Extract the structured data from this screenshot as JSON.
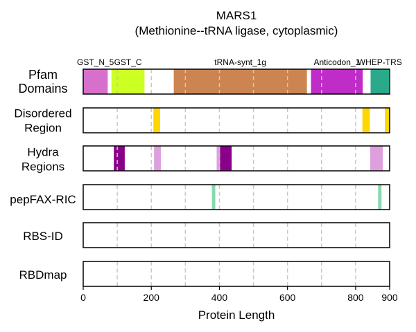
{
  "chart_data": {
    "type": "bar",
    "title": "MARS1",
    "subtitle": "(Methionine--tRNA ligase, cytoplasmic)",
    "xlabel": "Protein Length",
    "xlim": [
      0,
      900
    ],
    "xticks": [
      0,
      200,
      400,
      600,
      800,
      900
    ],
    "grid_x": [
      100,
      200,
      300,
      400,
      500,
      600,
      700,
      800
    ],
    "grid": true,
    "rows": [
      {
        "label": "Pfam Domains",
        "segments": [
          {
            "name": "GST_N_5",
            "start": 0,
            "end": 72,
            "color": "#d670cc"
          },
          {
            "name": "GST_C",
            "start": 83,
            "end": 180,
            "color": "#ccff22"
          },
          {
            "name": "tRNA-synt_1g",
            "start": 266,
            "end": 657,
            "color": "#cc8450"
          },
          {
            "name": "Anticodon_1",
            "start": 669,
            "end": 821,
            "color": "#c02cc8"
          },
          {
            "name": "WHEP-TRS",
            "start": 844,
            "end": 898,
            "color": "#2aaa8a"
          }
        ]
      },
      {
        "label": "Disordered Region",
        "segments": [
          {
            "start": 206,
            "end": 226,
            "color": "#ffd700"
          },
          {
            "start": 820,
            "end": 842,
            "color": "#ffd700"
          },
          {
            "start": 886,
            "end": 900,
            "color": "#ffd700"
          }
        ]
      },
      {
        "label": "Hydra Regions",
        "segments": [
          {
            "start": 90,
            "end": 122,
            "color": "#8b008b"
          },
          {
            "start": 208,
            "end": 228,
            "color": "#dda0dd"
          },
          {
            "start": 392,
            "end": 402,
            "color": "#dda0dd"
          },
          {
            "start": 402,
            "end": 436,
            "color": "#8b008b"
          },
          {
            "start": 843,
            "end": 880,
            "color": "#dda0dd"
          }
        ]
      },
      {
        "label": "pepFAX-RIC",
        "segments": [
          {
            "start": 378,
            "end": 388,
            "color": "#88d8b0"
          },
          {
            "start": 866,
            "end": 876,
            "color": "#88d8b0"
          }
        ]
      },
      {
        "label": "RBS-ID",
        "segments": []
      },
      {
        "label": "RBDmap",
        "segments": []
      }
    ]
  }
}
